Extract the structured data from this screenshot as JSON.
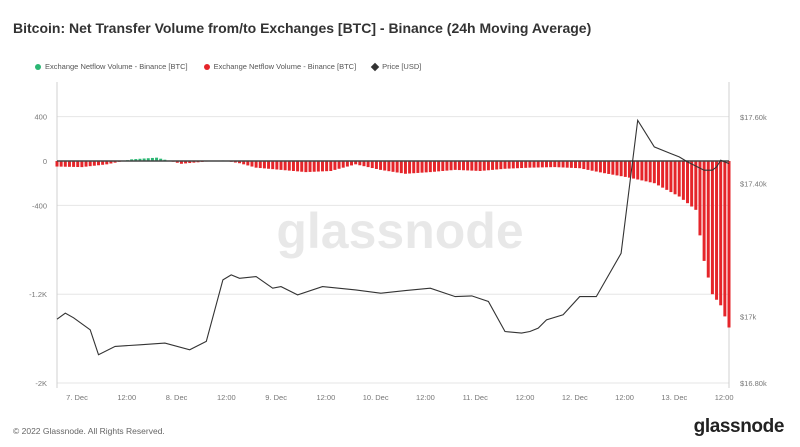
{
  "title": "Bitcoin: Net Transfer Volume from/to Exchanges [BTC] - Binance (24h Moving Average)",
  "legend": [
    {
      "label": "Exchange Netflow Volume - Binance [BTC]",
      "color": "#2bb673",
      "shape": "dot"
    },
    {
      "label": "Exchange Netflow Volume - Binance [BTC]",
      "color": "#e5252a",
      "shape": "dot"
    },
    {
      "label": "Price [USD]",
      "color": "#333333",
      "shape": "diamond"
    }
  ],
  "watermark": "glassnode",
  "footer": {
    "copyright": "© 2022 Glassnode. All Rights Reserved.",
    "brand": "glassnode"
  },
  "chart_data": {
    "type": "bar+line",
    "x_tick_labels": [
      "7. Dec",
      "12:00",
      "8. Dec",
      "12:00",
      "9. Dec",
      "12:00",
      "10. Dec",
      "12:00",
      "11. Dec",
      "12:00",
      "12. Dec",
      "12:00",
      "13. Dec",
      "12:00"
    ],
    "y_left": {
      "ticks": [
        "400",
        "0",
        "-400",
        "-1.2K",
        "-2K"
      ],
      "tick_values": [
        400,
        0,
        -400,
        -1200,
        -2000
      ],
      "range": [
        -2000,
        700
      ]
    },
    "y_right": {
      "ticks": [
        "$17.60k",
        "$17.40k",
        "$17k",
        "$16.80k"
      ],
      "tick_values": [
        17600,
        17400,
        17000,
        16800
      ],
      "range": [
        16800,
        17650
      ]
    },
    "x_range_hours": [
      0,
      162
    ],
    "netflow_series": {
      "name": "Exchange Netflow Volume - Binance [BTC]",
      "step_hours": 1,
      "points_hours": [
        0,
        6,
        12,
        18,
        24,
        30,
        36,
        40,
        44,
        48,
        54,
        60,
        66,
        72,
        78,
        84,
        90,
        96,
        102,
        108,
        114,
        120,
        126,
        132,
        138,
        144,
        150,
        154,
        156,
        158,
        160,
        162
      ],
      "points_values": [
        -50,
        -55,
        -30,
        15,
        30,
        -25,
        -5,
        5,
        -20,
        -60,
        -80,
        -100,
        -90,
        -30,
        -80,
        -115,
        -100,
        -80,
        -90,
        -70,
        -60,
        -55,
        -65,
        -110,
        -150,
        -200,
        -320,
        -440,
        -900,
        -1200,
        -1300,
        -1500
      ]
    },
    "price_series": {
      "name": "Price [USD]",
      "points_hours": [
        0,
        2,
        4,
        8,
        10,
        14,
        20,
        26,
        32,
        36,
        40,
        42,
        44,
        48,
        52,
        54,
        58,
        64,
        72,
        78,
        84,
        90,
        96,
        100,
        104,
        108,
        112,
        114,
        116,
        118,
        122,
        126,
        130,
        136,
        140,
        144,
        148,
        150,
        152,
        156,
        158,
        159,
        160,
        162
      ],
      "points_values": [
        16992,
        17010,
        16996,
        16960,
        16885,
        16910,
        16915,
        16920,
        16900,
        16925,
        17110,
        17125,
        17115,
        17120,
        17085,
        17090,
        17065,
        17090,
        17080,
        17070,
        17078,
        17085,
        17060,
        17062,
        17045,
        16955,
        16950,
        16955,
        16965,
        16990,
        17005,
        17060,
        17060,
        17190,
        17590,
        17510,
        17490,
        17480,
        17465,
        17440,
        17440,
        17450,
        17470,
        17460
      ]
    }
  }
}
